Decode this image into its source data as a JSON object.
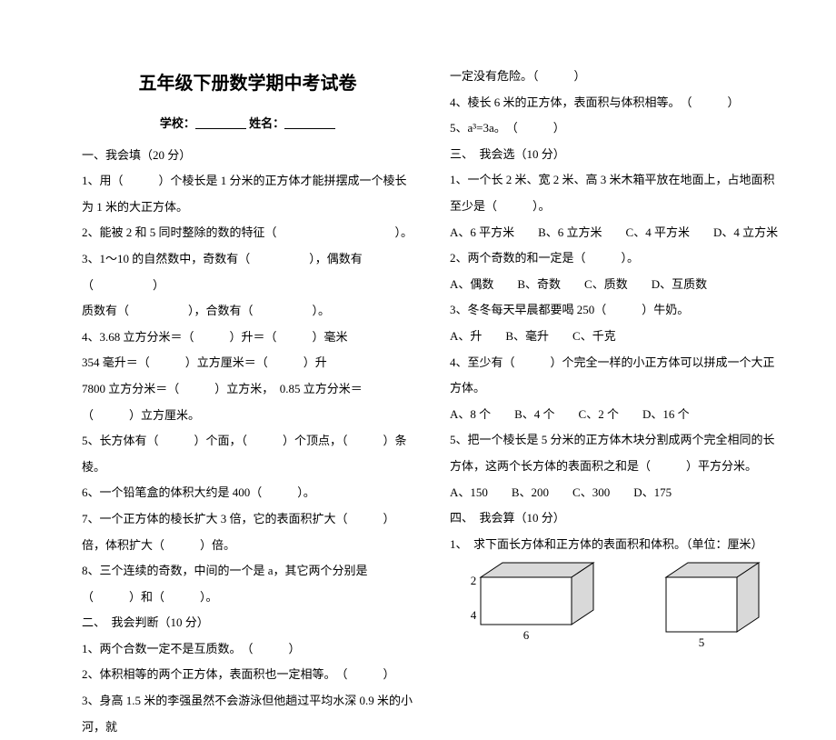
{
  "title": "五年级下册数学期中考试卷",
  "header": {
    "school_label": "学校：",
    "name_label": "姓名："
  },
  "left": {
    "s1_heading": "一、我会填（20 分）",
    "q1": "1、用（　　　）个棱长是 1 分米的正方体才能拼摆成一个棱长为 1 米的大正方体。",
    "q2": "2、能被 2 和 5 同时整除的数的特征（　　　　　　　　　　）。",
    "q3a": "3、1～10 的自然数中，奇数有（　　　　　），偶数有（　　　　　）",
    "q3b": "质数有（　　　　　），合数有（　　　　　）。",
    "q4a": "4、3.68 立方分米＝（　　　）升＝（　　　）毫米",
    "q4b": "354 毫升＝（　　　）立方厘米＝（　　　）升",
    "q4c": "7800 立方分米＝（　　　）立方米，　0.85 立方分米＝（　　　）立方厘米。",
    "q5": "5、长方体有（　　　）个面，（　　　）个顶点，（　　　）条棱。",
    "q6": "6、一个铅笔盒的体积大约是 400（　　　）。",
    "q7": "7、一个正方体的棱长扩大 3 倍，它的表面积扩大（　　　）倍，体积扩大（　　　）倍。",
    "q8": "8、三个连续的奇数，中间的一个是 a，其它两个分别是（　　　）和（　　　）。",
    "s2_heading": "二、　我会判断（10 分）",
    "j1": "1、两个合数一定不是互质数。　（　　　）",
    "j2": "2、体积相等的两个正方体，表面积也一定相等。　（　　　）",
    "j3": "3、身高 1.5 米的李强虽然不会游泳但他趟过平均水深 0.9 米的小河，就"
  },
  "right": {
    "j3b": "一定没有危险。（　　　）",
    "j4": "4、棱长 6 米的正方体，表面积与体积相等。　（　　　）",
    "j5": "5、a³=3a。　（　　　）",
    "s3_heading": "三、　我会选（10 分）",
    "c1a": "1、一个长 2 米、宽 2 米、高 3 米木箱平放在地面上，占地面积至少是（　　　）。",
    "c1b": "A、6 平方米　　B、6 立方米　　C、4 平方米　　D、4 立方米",
    "c2a": "2、两个奇数的和一定是（　　　）。",
    "c2b": "A、偶数　　B、奇数　　C、质数　　D、互质数",
    "c3a": "3、冬冬每天早晨都要喝 250（　　　）牛奶。",
    "c3b": "A、升　　B、毫升　　C、千克",
    "c4a": "4、至少有（　　　）个完全一样的小正方体可以拼成一个大正方体。",
    "c4b": "A、8 个　　B、4 个　　C、2 个　　D、16 个",
    "c5a": "5、把一个棱长是 5 分米的正方体木块分割成两个完全相同的长方体，这两个长方体的表面积之和是（　　　）平方分米。",
    "c5b": "A、150　　B、200　　C、300　　D、175",
    "s4_heading": "四、　我会算（10 分）",
    "calc1": "1、　求下面长方体和正方体的表面积和体积。（单位：厘米）",
    "fig1": {
      "w_label": "6",
      "d_label": "4",
      "h_label": "2",
      "w": 100,
      "hpx": 52,
      "dxpx": 24,
      "dypx": 16
    },
    "fig2": {
      "w_label": "5",
      "w": 78,
      "hpx": 60,
      "dxpx": 24,
      "dypx": 16
    }
  },
  "colors": {
    "text": "#000000",
    "bg": "#ffffff",
    "stroke": "#000000",
    "shade": "#d9d9d9"
  }
}
